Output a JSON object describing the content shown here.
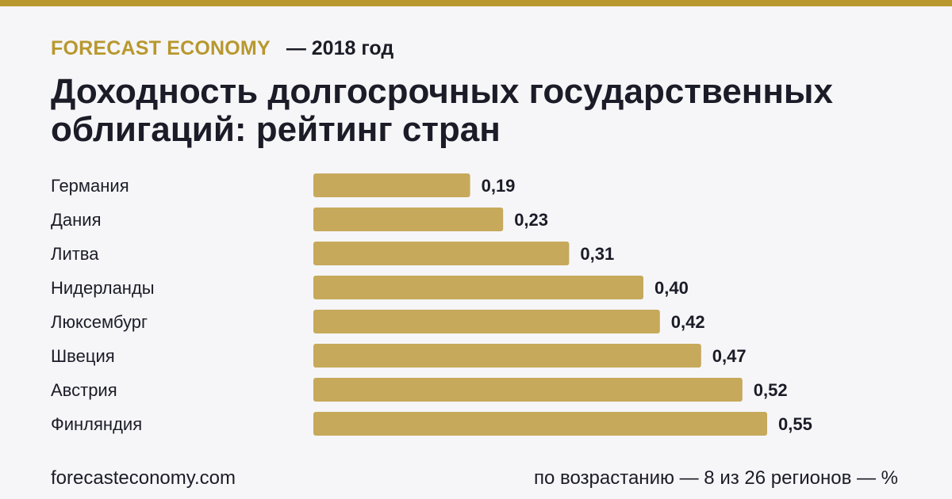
{
  "header": {
    "brand": "FORECAST ECONOMY",
    "year_label": "— 2018 год",
    "title": "Доходность долгосрочных государственных облигаций: рейтинг стран"
  },
  "colors": {
    "accent": "#b8982f",
    "bar": "#c6a95b",
    "text": "#1c1c28",
    "background": "#f6f6f8"
  },
  "chart_data": {
    "type": "bar",
    "orientation": "horizontal",
    "categories": [
      "Германия",
      "Дания",
      "Литва",
      "Нидерланды",
      "Люксембург",
      "Швеция",
      "Австрия",
      "Финляндия"
    ],
    "values": [
      0.19,
      0.23,
      0.31,
      0.4,
      0.42,
      0.47,
      0.52,
      0.55
    ],
    "value_labels": [
      "0,19",
      "0,23",
      "0,31",
      "0,40",
      "0,42",
      "0,47",
      "0,52",
      "0,55"
    ],
    "xlim": [
      0,
      0.55
    ],
    "grid": false,
    "legend": "none"
  },
  "footer": {
    "site": "forecasteconomy.com",
    "note": "по возрастанию — 8 из 26 регионов — %"
  }
}
